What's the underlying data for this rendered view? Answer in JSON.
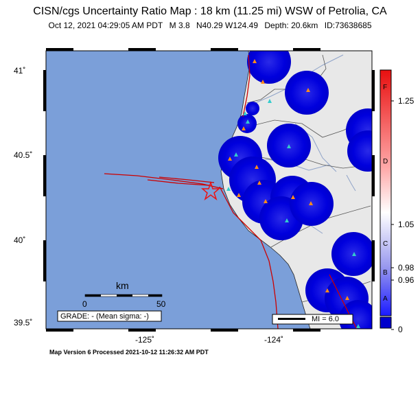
{
  "header": {
    "title": "CISN/cgs Uncertainty Ratio Map : 18 km (11.25 mi) WSW of Petrolia, CA",
    "date": "Oct 12, 2021 04:29:05 AM PDT",
    "magnitude": "M 3.8",
    "location": "N40.29 W124.49",
    "depth": "Depth: 20.6km",
    "event_id": "ID:73638685"
  },
  "map": {
    "lat_labels": [
      "41˚",
      "40.5˚",
      "40˚",
      "39.5˚"
    ],
    "lon_labels": [
      "-125˚",
      "-124˚"
    ],
    "scale_unit": "km",
    "scale_ticks": [
      "0",
      "50"
    ],
    "grade_text": "GRADE: - (Mean sigma: -)",
    "mi_legend": "MI = 6.0",
    "epicenter_symbol": "star"
  },
  "colorbar": {
    "values": [
      "1.25",
      "1.05",
      "0.98",
      "0.96",
      "0"
    ],
    "letters": [
      "F",
      "D",
      "C",
      "B",
      "A"
    ]
  },
  "footer": {
    "processed": "Map Version 6 Processed 2021-10-12 11:26:32 AM PDT"
  },
  "colors": {
    "ocean": "#7b9fd9",
    "land": "#e8e8e8",
    "uncertainty": "#0000cc",
    "fault": "#cc0000",
    "station_orange": "#ff8c1a",
    "station_cyan": "#33cccc"
  }
}
